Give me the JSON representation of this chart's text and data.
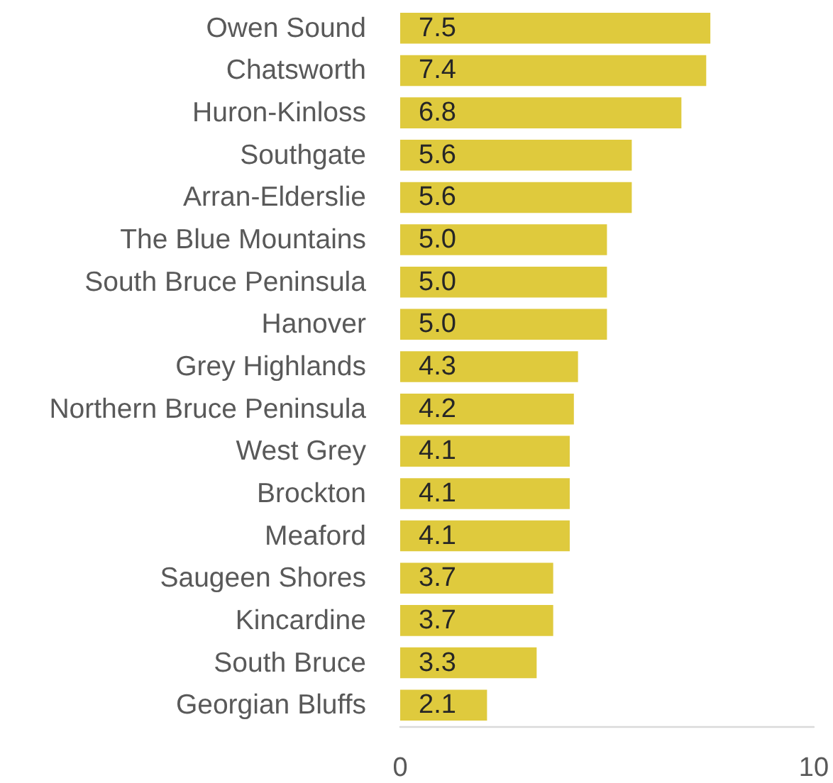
{
  "chart_data": {
    "type": "bar",
    "orientation": "horizontal",
    "categories": [
      "Owen Sound",
      "Chatsworth",
      "Huron-Kinloss",
      "Southgate",
      "Arran-Elderslie",
      "The Blue Mountains",
      "South Bruce Peninsula",
      "Hanover",
      "Grey Highlands",
      "Northern Bruce Peninsula",
      "West Grey",
      "Brockton",
      "Meaford",
      "Saugeen Shores",
      "Kincardine",
      "South Bruce",
      "Georgian Bluffs"
    ],
    "values": [
      7.5,
      7.4,
      6.8,
      5.6,
      5.6,
      5.0,
      5.0,
      5.0,
      4.3,
      4.2,
      4.1,
      4.1,
      4.1,
      3.7,
      3.7,
      3.3,
      2.1
    ],
    "value_labels": [
      "7.5",
      "7.4",
      "6.8",
      "5.6",
      "5.6",
      "5.0",
      "5.0",
      "5.0",
      "4.3",
      "4.2",
      "4.1",
      "4.1",
      "4.1",
      "3.7",
      "3.7",
      "3.3",
      "2.1"
    ],
    "color": "#dfca3d",
    "xlim": [
      0,
      10
    ],
    "xticks": [
      0,
      10
    ]
  }
}
